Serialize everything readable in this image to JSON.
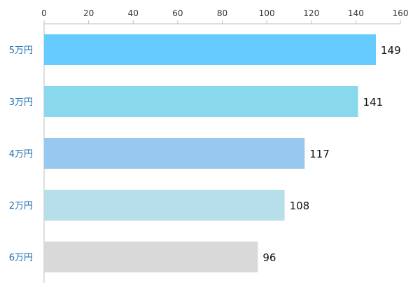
{
  "chart_data": {
    "type": "bar",
    "orientation": "horizontal",
    "axis_position": "top",
    "grid": false,
    "xlim": [
      0,
      160
    ],
    "ticks": [
      0,
      20,
      40,
      60,
      80,
      100,
      120,
      140,
      160
    ],
    "categories": [
      "5万円",
      "3万円",
      "4万円",
      "2万円",
      "6万円"
    ],
    "values": [
      149,
      141,
      117,
      108,
      96
    ],
    "data_labels": [
      "149",
      "141",
      "117",
      "108",
      "96"
    ],
    "colors": [
      "#66ccff",
      "#8ad8ec",
      "#96c8f0",
      "#b6dfe9",
      "#d9d9d9"
    ],
    "axis_color": "#bfbfbf",
    "category_label_color": "#1f6eb0"
  }
}
